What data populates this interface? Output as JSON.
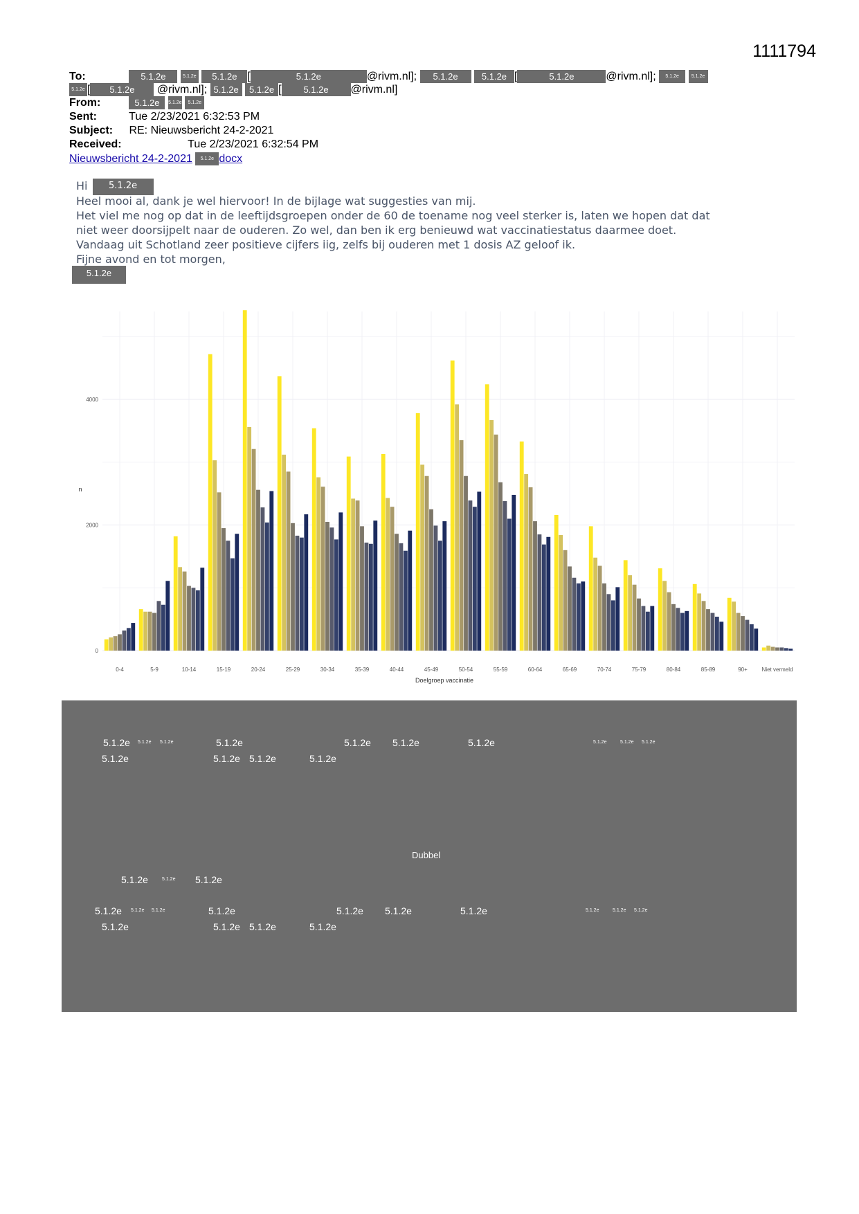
{
  "doc_id": "1111794",
  "redaction": "5.1.2e",
  "header": {
    "to_label": "To:",
    "from_label": "From:",
    "sent_label": "Sent:",
    "sent_value": "Tue 2/23/2021 6:32:53 PM",
    "subject_label": "Subject:",
    "subject_value": "RE: Nieuwsbericht 24-2-2021",
    "received_label": "Received:",
    "received_value": "Tue 2/23/2021 6:32:54 PM",
    "domain_a": "@rivm.nl];",
    "domain_b": "@rivm.nl];",
    "domain_c": "@rivm.nl];",
    "domain_d": "@rivm.nl]",
    "attachment_prefix": "Nieuwsbericht 24-2-2021",
    "attachment_suffix": "docx"
  },
  "body": {
    "greeting": "Hi",
    "line1": "Heel mooi al, dank je wel hiervoor! In de bijlage wat suggesties van mij.",
    "line2": "Het viel me nog op dat in de leeftijdsgroepen onder de 60 de toename nog veel sterker is, laten we hopen dat dat",
    "line3": "niet weer doorsijpelt naar de ouderen. Zo wel, dan ben ik erg benieuwd wat vaccinatiestatus daarmee doet.",
    "line4": "Vandaag uit Schotland zeer positieve cijfers iig, zelfs bij ouderen met 1 dosis AZ geloof ik.",
    "line5": "Fijne avond en tot morgen,"
  },
  "grey_block": {
    "label": "Dubbel"
  },
  "chart_data": {
    "type": "bar",
    "title": "",
    "xlabel": "Doelgroep vaccinatie",
    "ylabel": "n",
    "ylim": [
      0,
      5400
    ],
    "yticks": [
      0,
      2000,
      4000
    ],
    "categories": [
      "0-4",
      "5-9",
      "10-14",
      "15-19",
      "20-24",
      "25-29",
      "30-34",
      "35-39",
      "40-44",
      "45-49",
      "50-54",
      "55-59",
      "60-64",
      "65-69",
      "70-74",
      "75-79",
      "80-84",
      "85-89",
      "90+",
      "Niet vermeld"
    ],
    "series_colors": [
      "#fde725",
      "#d4c25e",
      "#a99a6a",
      "#7d7769",
      "#575a6c",
      "#33406a",
      "#1c2b5e"
    ],
    "values": [
      [
        180,
        210,
        230,
        260,
        320,
        360,
        440
      ],
      [
        660,
        620,
        620,
        600,
        790,
        730,
        1110
      ],
      [
        1820,
        1330,
        1260,
        1030,
        1000,
        960,
        1320
      ],
      [
        4720,
        3030,
        2520,
        1950,
        1750,
        1470,
        1860
      ],
      [
        5420,
        3560,
        3210,
        2560,
        2280,
        2040,
        2540
      ],
      [
        4370,
        3120,
        2850,
        2030,
        1830,
        1800,
        2170
      ],
      [
        3540,
        2760,
        2610,
        2050,
        1960,
        1770,
        2200
      ],
      [
        3090,
        2420,
        2390,
        1980,
        1720,
        1700,
        2070
      ],
      [
        3130,
        2430,
        2290,
        1860,
        1710,
        1590,
        1910
      ],
      [
        3780,
        2960,
        2780,
        2250,
        1990,
        1750,
        2060
      ],
      [
        4620,
        3920,
        3350,
        2780,
        2390,
        2290,
        2530
      ],
      [
        4240,
        3670,
        3440,
        2680,
        2380,
        2100,
        2480
      ],
      [
        3330,
        2810,
        2600,
        2060,
        1850,
        1690,
        1810
      ],
      [
        2160,
        1840,
        1600,
        1340,
        1160,
        1070,
        1100
      ],
      [
        1980,
        1480,
        1350,
        1070,
        900,
        800,
        1010
      ],
      [
        1440,
        1200,
        1050,
        830,
        710,
        620,
        710
      ],
      [
        1310,
        1110,
        930,
        740,
        680,
        600,
        630
      ],
      [
        1060,
        910,
        790,
        660,
        600,
        540,
        460
      ],
      [
        840,
        780,
        600,
        550,
        490,
        420,
        350
      ],
      [
        50,
        80,
        60,
        50,
        50,
        40,
        30
      ]
    ]
  }
}
